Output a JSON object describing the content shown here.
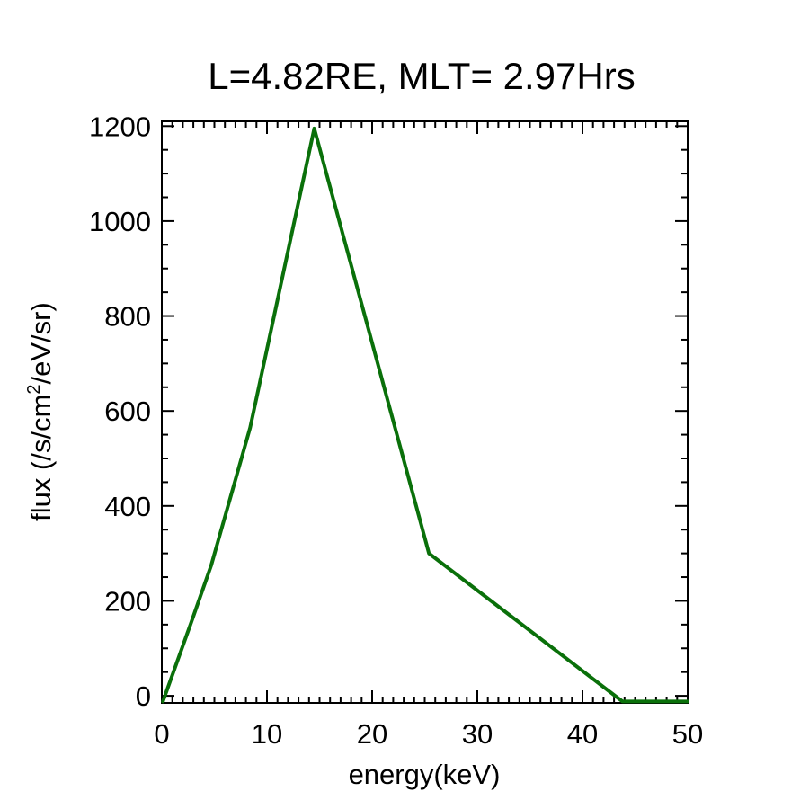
{
  "chart_data": {
    "type": "line",
    "title": "L=4.82RE, MLT= 2.97Hrs",
    "xlabel": "energy(keV)",
    "ylabel_main": "flux (/s/cm",
    "ylabel_sup": "2",
    "ylabel_tail": "/eV/sr)",
    "xlim": [
      0,
      50
    ],
    "ylim": [
      -15,
      1210
    ],
    "x_ticks": [
      0,
      10,
      20,
      30,
      40,
      50
    ],
    "x_tick_labels": [
      "0",
      "10",
      "20",
      "30",
      "40",
      "50"
    ],
    "x_minor_step": 1,
    "y_ticks": [
      0,
      200,
      400,
      600,
      800,
      1000,
      1200
    ],
    "y_tick_labels": [
      "0",
      "200",
      "400",
      "600",
      "800",
      "1000",
      "1200"
    ],
    "y_minor_step": 50,
    "grid": false,
    "series": [
      {
        "color": "#0a700a",
        "x": [
          0.1,
          2.8,
          4.7,
          8.4,
          14.5,
          25.4,
          43.8,
          50
        ],
        "y": [
          -12,
          155,
          275,
          565,
          1195,
          300,
          -12,
          -12
        ]
      }
    ]
  }
}
